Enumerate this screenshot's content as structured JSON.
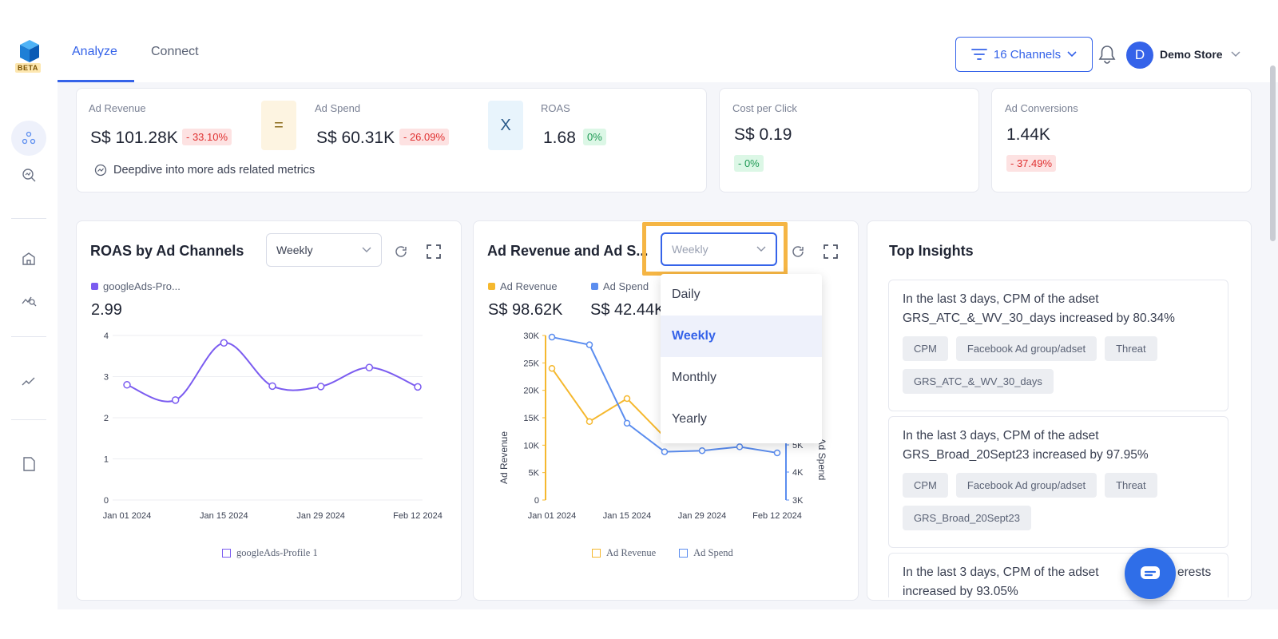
{
  "nav": {
    "beta": "BETA",
    "tabs": [
      {
        "label": "Analyze"
      },
      {
        "label": "Connect"
      }
    ],
    "channels_label": "16 Channels",
    "avatar_initial": "D",
    "store_name": "Demo Store"
  },
  "kpis": {
    "ad_revenue": {
      "label": "Ad Revenue",
      "value": "S$ 101.28K",
      "change": "- 33.10%"
    },
    "equals_symbol": "=",
    "ad_spend": {
      "label": "Ad Spend",
      "value": "S$ 60.31K",
      "change": "- 26.09%"
    },
    "times_symbol": "X",
    "roas": {
      "label": "ROAS",
      "value": "1.68",
      "change": "0%"
    },
    "deepdive_link": "Deepdive into more ads related metrics",
    "cpc": {
      "label": "Cost per Click",
      "value": "S$ 0.19",
      "change": "- 0%"
    },
    "conversions": {
      "label": "Ad Conversions",
      "value": "1.44K",
      "change": "- 37.49%"
    }
  },
  "roas_chart": {
    "title": "ROAS by Ad Channels",
    "period": "Weekly",
    "legend_label": "googleAds-Pro...",
    "legend_value": "2.99",
    "bottom_legend": "googleAds-Profile 1"
  },
  "revenue_chart": {
    "title": "Ad Revenue and Ad S...",
    "period": "Weekly",
    "legend": [
      {
        "label": "Ad Revenue",
        "value": "S$ 98.62K",
        "color": "#f5b82e"
      },
      {
        "label": "Ad Spend",
        "value": "S$ 42.44K",
        "color": "#5b8def"
      }
    ],
    "bottom_legend": [
      "Ad Revenue",
      "Ad Spend"
    ],
    "dropdown_options": [
      "Daily",
      "Weekly",
      "Monthly",
      "Yearly"
    ],
    "dropdown_selected": "Weekly"
  },
  "insights": {
    "title": "Top Insights",
    "items": [
      {
        "text": "In the last 3 days, CPM of the adset GRS_ATC_&_WV_30_days increased by 80.34%",
        "tags": [
          "CPM",
          "Facebook Ad group/adset",
          "Threat",
          "GRS_ATC_&_WV_30_days"
        ]
      },
      {
        "text": "In the last 3 days, CPM of the adset GRS_Broad_20Sept23 increased by 97.95%",
        "tags": [
          "CPM",
          "Facebook Ad group/adset",
          "Threat",
          "GRS_Broad_20Sept23"
        ]
      },
      {
        "text": "In the last 3 days, CPM of the adset",
        "text_tail": "erests",
        "text_line2": "increased by 93.05%"
      }
    ]
  },
  "chart_data": [
    {
      "type": "line",
      "title": "ROAS by Ad Channels",
      "x": [
        "Jan 01 2024",
        "Jan 08 2024",
        "Jan 15 2024",
        "Jan 22 2024",
        "Jan 29 2024",
        "Feb 05 2024",
        "Feb 12 2024"
      ],
      "xticks": [
        "Jan 01 2024",
        "Jan 15 2024",
        "Jan 29 2024",
        "Feb 12 2024"
      ],
      "series": [
        {
          "name": "googleAds-Profile 1",
          "values": [
            2.8,
            2.43,
            3.82,
            2.77,
            2.76,
            3.22,
            2.75
          ],
          "color": "#7b5cf0"
        }
      ],
      "ylim": [
        0,
        4
      ],
      "yticks": [
        0,
        1,
        2,
        3,
        4
      ],
      "grid": true
    },
    {
      "type": "line",
      "title": "Ad Revenue and Ad Spend",
      "x": [
        "Jan 01 2024",
        "Jan 08 2024",
        "Jan 15 2024",
        "Jan 22 2024",
        "Jan 29 2024",
        "Feb 05 2024",
        "Feb 12 2024"
      ],
      "xticks": [
        "Jan 01 2024",
        "Jan 15 2024",
        "Jan 29 2024",
        "Feb 12 2024"
      ],
      "ylabel": "Ad Revenue",
      "y2label": "Ad Spend",
      "yticks": [
        "0",
        "5K",
        "10K",
        "15K",
        "20K",
        "25K",
        "30K"
      ],
      "y2ticks": [
        "3K",
        "4K",
        "5K"
      ],
      "ylim": [
        0,
        30000
      ],
      "series": [
        {
          "name": "Ad Revenue",
          "axis": "left",
          "values": [
            24000,
            14300,
            18500,
            11500,
            null,
            null,
            null
          ],
          "color": "#f5b82e"
        },
        {
          "name": "Ad Spend",
          "axis": "left",
          "values": [
            29700,
            28300,
            14000,
            8800,
            9000,
            9700,
            8600
          ],
          "color": "#5b8def"
        }
      ]
    }
  ]
}
